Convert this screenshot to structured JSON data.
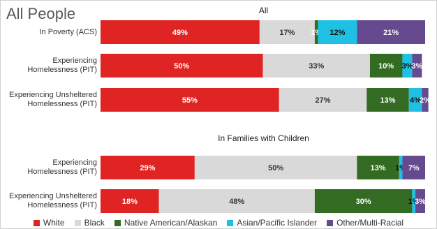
{
  "title": "All People",
  "chart_data": [
    {
      "type": "bar",
      "subtitle": "All",
      "categories": [
        "In Poverty (ACS)",
        "Experiencing Homelessness (PIT)",
        "Experiencing Unsheltered Homelessness (PIT)"
      ],
      "xlim": [
        0,
        100
      ],
      "series": [
        {
          "name": "White",
          "color": "#e02424",
          "values": [
            49,
            50,
            55
          ],
          "value_labels": [
            "49%",
            "50%",
            "55%"
          ]
        },
        {
          "name": "Black",
          "color": "#d9d9d9",
          "values": [
            17,
            33,
            27
          ],
          "value_labels": [
            "17%",
            "33%",
            "27%"
          ]
        },
        {
          "name": "Native American/Alaskan",
          "color": "#336b22",
          "values": [
            1,
            10,
            13
          ],
          "value_labels": [
            "1%",
            "10%",
            "13%"
          ]
        },
        {
          "name": "Asian/Pacific Islander",
          "color": "#1ec0e4",
          "values": [
            12,
            3,
            4
          ],
          "value_labels": [
            "12%",
            "3%",
            "4%"
          ]
        },
        {
          "name": "Other/Multi-Racial",
          "color": "#654a8f",
          "values": [
            21,
            3,
            2
          ],
          "value_labels": [
            "21%",
            "3%",
            "2%"
          ]
        }
      ]
    },
    {
      "type": "bar",
      "subtitle": "In Families with Children",
      "categories": [
        "Experiencing Homelessness (PIT)",
        "Experiencing Unsheltered Homelessness (PIT)"
      ],
      "xlim": [
        0,
        100
      ],
      "series": [
        {
          "name": "White",
          "color": "#e02424",
          "values": [
            29,
            18
          ],
          "value_labels": [
            "29%",
            "18%"
          ]
        },
        {
          "name": "Black",
          "color": "#d9d9d9",
          "values": [
            50,
            48
          ],
          "value_labels": [
            "50%",
            "48%"
          ]
        },
        {
          "name": "Native American/Alaskan",
          "color": "#336b22",
          "values": [
            13,
            30
          ],
          "value_labels": [
            "13%",
            "30%"
          ]
        },
        {
          "name": "Asian/Pacific Islander",
          "color": "#1ec0e4",
          "values": [
            1,
            1
          ],
          "value_labels": [
            "1%",
            "1%"
          ]
        },
        {
          "name": "Other/Multi-Racial",
          "color": "#654a8f",
          "values": [
            7,
            3
          ],
          "value_labels": [
            "7%",
            "3%"
          ]
        }
      ]
    }
  ]
}
